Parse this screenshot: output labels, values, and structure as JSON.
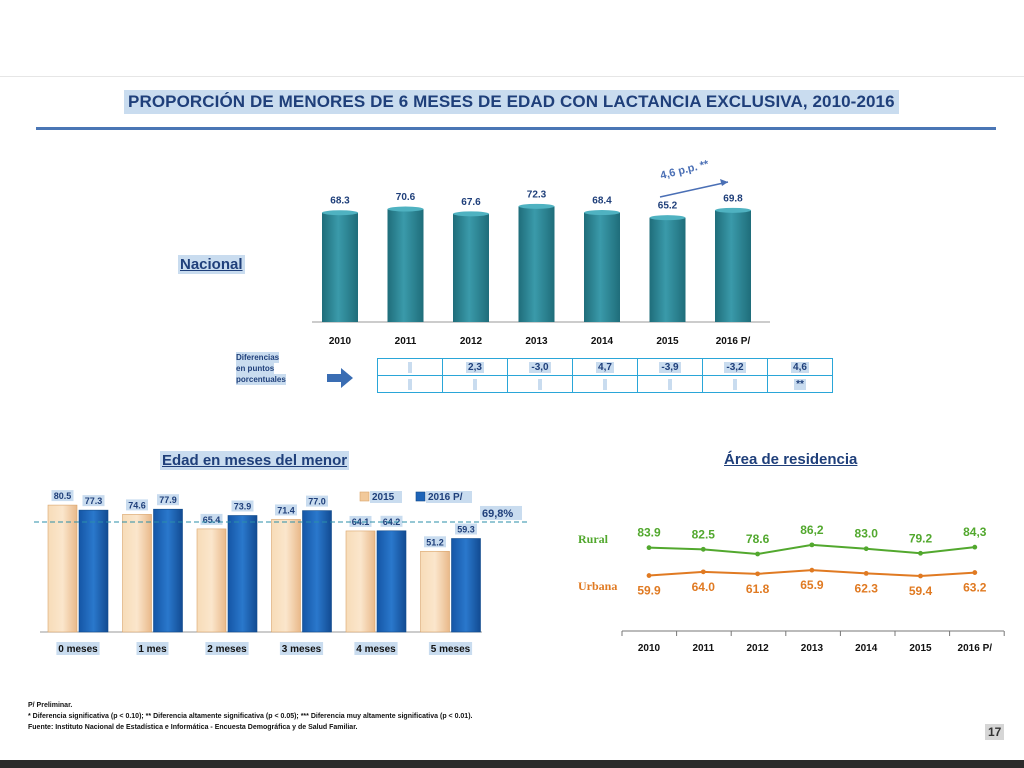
{
  "title": "PROPORCIÓN DE MENORES DE 6 MESES DE EDAD CON LACTANCIA EXCLUSIVA, 2010-2016",
  "colors": {
    "teal_bar": "#2d8a99",
    "beige_bar": "#f5cfa0",
    "blue_bar": "#1e64b8",
    "rural": "#52a82e",
    "urbana": "#e07a22",
    "title_bg": "#c9dcef"
  },
  "nacional": {
    "label": "Nacional",
    "arrow_annotation": "4,6 p.p. **",
    "diff_label_lines": [
      "Diferencias",
      "en puntos",
      "porcentuales"
    ],
    "diff_values": [
      "",
      "2,3",
      "-3,0",
      "4,7",
      "-3,9",
      "-3,2",
      "4,6"
    ],
    "diff_sig": [
      "",
      "",
      "",
      "",
      "",
      "",
      "**"
    ]
  },
  "edad": {
    "label": "Edad en meses del menor",
    "reference_label": "69,8%"
  },
  "area": {
    "label": "Área de residencia"
  },
  "chart_data": [
    {
      "type": "bar",
      "categories": [
        "2010",
        "2011",
        "2012",
        "2013",
        "2014",
        "2015",
        "2016 P/"
      ],
      "values": [
        68.3,
        70.6,
        67.6,
        72.3,
        68.4,
        65.2,
        69.8
      ],
      "value_labels": [
        "68.3",
        "70.6",
        "67.6",
        "72.3",
        "68.4",
        "65.2",
        "69.8"
      ],
      "ylim": [
        0,
        75
      ]
    },
    {
      "type": "bar",
      "categories": [
        "0 meses",
        "1 mes",
        "2 meses",
        "3 meses",
        "4 meses",
        "5 meses"
      ],
      "series": [
        {
          "name": "2015",
          "values": [
            80.5,
            74.6,
            65.4,
            71.4,
            64.1,
            51.2
          ],
          "labels": [
            "80.5",
            "74.6",
            "65.4",
            "71.4",
            "64.1",
            "51.2"
          ]
        },
        {
          "name": "2016 P/",
          "values": [
            77.3,
            77.9,
            73.9,
            77.0,
            64.2,
            59.3
          ],
          "labels": [
            "77.3",
            "77.9",
            "73.9",
            "77.0",
            "64.2",
            "59.3"
          ]
        }
      ],
      "reference_line": 69.8,
      "ylim": [
        0,
        85
      ],
      "legend": "top-right"
    },
    {
      "type": "line",
      "x": [
        "2010",
        "2011",
        "2012",
        "2013",
        "2014",
        "2015",
        "2016 P/"
      ],
      "series": [
        {
          "name": "Rural",
          "values": [
            83.9,
            82.5,
            78.6,
            86.2,
            83.0,
            79.2,
            84.3
          ],
          "labels": [
            "83.9",
            "82.5",
            "78.6",
            "86,2",
            "83.0",
            "79.2",
            "84,3"
          ]
        },
        {
          "name": "Urbana",
          "values": [
            59.9,
            64.0,
            61.8,
            65.9,
            62.3,
            59.4,
            63.2
          ],
          "labels": [
            "59.9",
            "64.0",
            "61.8",
            "65.9",
            "62.3",
            "59.4",
            "63.2"
          ]
        }
      ]
    }
  ],
  "footnotes": [
    "P/ Preliminar.",
    "*    Diferencia significativa (p < 0.10); **  Diferencia altamente significativa (p < 0.05); *** Diferencia muy altamente significativa (p < 0.01).",
    "Fuente: Instituto Nacional de Estadística e Informática - Encuesta Demográfica y de Salud Familiar."
  ],
  "page_number": "17"
}
